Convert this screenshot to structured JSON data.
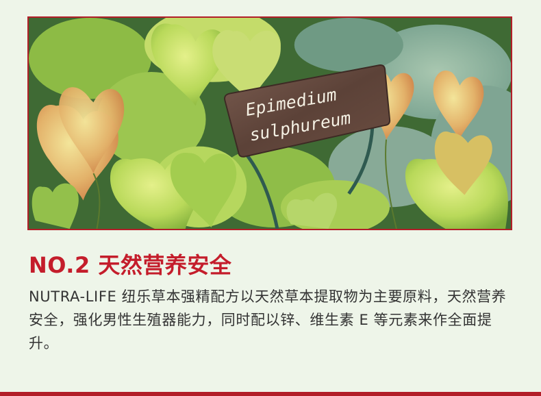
{
  "photo": {
    "sign_line1": "Epimedium",
    "sign_line2": "sulphureum"
  },
  "section": {
    "heading": "NO.2 天然营养安全",
    "body": "NUTRA-LIFE 纽乐草本强精配方以天然草本提取物为主要原料，天然营养安全，强化男性生殖器能力，同时配以锌、维生素 E 等元素来作全面提升。"
  },
  "colors": {
    "accent": "#c41d2b",
    "frame": "#b21e28",
    "background": "#eef5e9",
    "text": "#333333"
  }
}
